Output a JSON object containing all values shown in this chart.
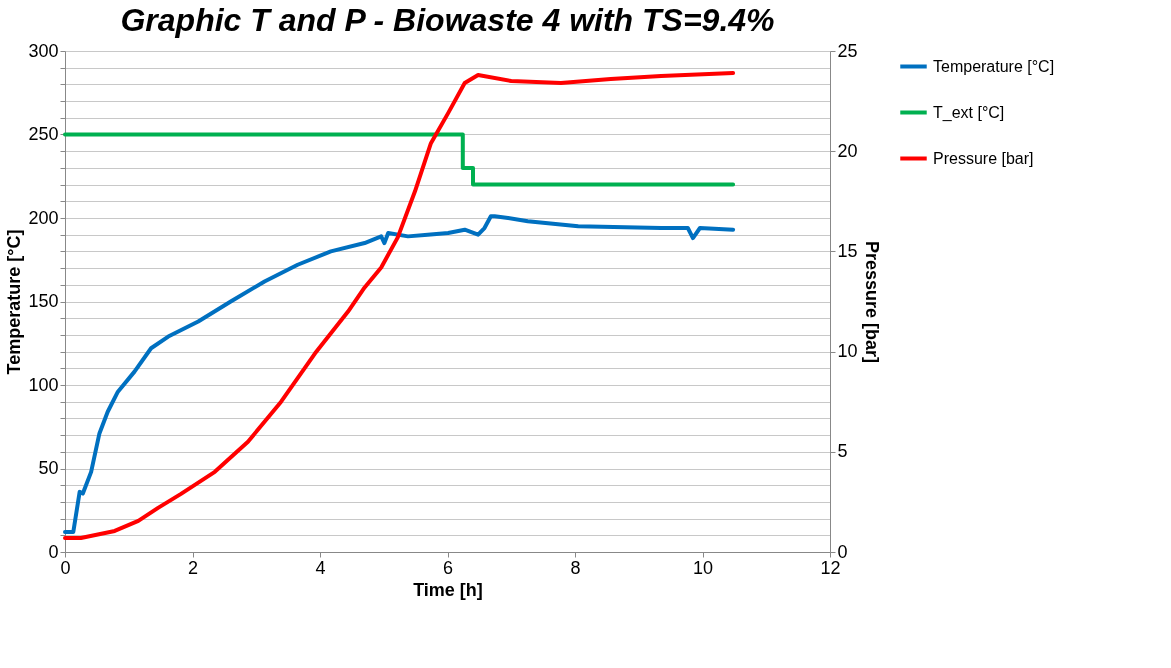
{
  "chart_data": {
    "type": "line",
    "title": "Graphic T and P - Biowaste 4 with TS=9.4%",
    "xlabel": "Time [h]",
    "ylabel": "Temperature [°C]",
    "y2label": "Pressure [bar]",
    "xlim": [
      0,
      12
    ],
    "xticks": [
      0,
      2,
      4,
      6,
      8,
      10,
      12
    ],
    "ylim": [
      0,
      300
    ],
    "yticks": [
      0,
      {
        "value": 10,
        "label": null
      },
      {
        "value": 20,
        "label": null
      },
      {
        "value": 30,
        "label": null
      },
      {
        "value": 40,
        "label": null
      },
      50,
      {
        "value": 60,
        "label": null
      },
      {
        "value": 70,
        "label": null
      },
      {
        "value": 80,
        "label": null
      },
      {
        "value": 90,
        "label": null
      },
      100,
      {
        "value": 110,
        "label": null
      },
      {
        "value": 120,
        "label": null
      },
      {
        "value": 130,
        "label": null
      },
      {
        "value": 140,
        "label": null
      },
      150,
      {
        "value": 160,
        "label": null
      },
      {
        "value": 170,
        "label": null
      },
      {
        "value": 180,
        "label": null
      },
      {
        "value": 190,
        "label": null
      },
      200,
      {
        "value": 210,
        "label": null
      },
      {
        "value": 220,
        "label": null
      },
      {
        "value": 230,
        "label": null
      },
      {
        "value": 240,
        "label": null
      },
      250,
      {
        "value": 260,
        "label": null
      },
      {
        "value": 270,
        "label": null
      },
      {
        "value": 280,
        "label": null
      },
      {
        "value": 290,
        "label": null
      },
      300
    ],
    "y2lim": [
      0,
      25
    ],
    "y2ticks": [
      0,
      5,
      10,
      15,
      20,
      25
    ],
    "grid": "y",
    "legend": "top right",
    "series": [
      {
        "name": "Temperature [°C]",
        "color": "#0070c0",
        "x": [
          0,
          0.13,
          0.23,
          0.28,
          0.41,
          0.54,
          0.67,
          0.83,
          1.09,
          1.35,
          1.62,
          2.09,
          2.6,
          3.13,
          3.65,
          4.17,
          4.7,
          4.96,
          5.01,
          5.07,
          5.38,
          5.69,
          6.01,
          6.27,
          6.48,
          6.58,
          6.68,
          6.74,
          6.95,
          7.26,
          8.05,
          9.35,
          9.77,
          9.85,
          9.96,
          10.48
        ],
        "values": [
          12,
          12,
          36,
          35,
          48,
          71,
          84,
          96,
          108,
          122,
          129,
          138,
          150,
          162,
          172,
          180,
          185,
          189,
          185,
          191,
          189,
          190,
          191,
          193,
          190,
          194,
          201,
          201,
          200,
          198,
          195,
          194,
          194,
          188,
          194,
          193
        ]
      },
      {
        "name": "T_ext [°C]",
        "type": "step",
        "color": "#00b050",
        "x": [
          0,
          6.24,
          6.4,
          10.48
        ],
        "values": [
          250,
          230,
          220,
          220
        ]
      },
      {
        "name": "Pressure [bar]",
        "axis": "y2",
        "color": "#ff0000",
        "x": [
          0,
          0.25,
          0.78,
          1.15,
          1.46,
          1.82,
          2.35,
          2.87,
          3.39,
          3.92,
          4.44,
          4.7,
          4.96,
          5.22,
          5.49,
          5.74,
          6.01,
          6.27,
          6.48,
          7.0,
          7.78,
          8.56,
          9.35,
          10.48
        ],
        "values": [
          0.7,
          0.7,
          1.05,
          1.55,
          2.2,
          2.9,
          4.0,
          5.5,
          7.5,
          9.9,
          12.0,
          13.2,
          14.2,
          15.7,
          18.0,
          20.4,
          21.9,
          23.4,
          23.8,
          23.5,
          23.4,
          23.6,
          23.75,
          23.9
        ]
      }
    ]
  }
}
